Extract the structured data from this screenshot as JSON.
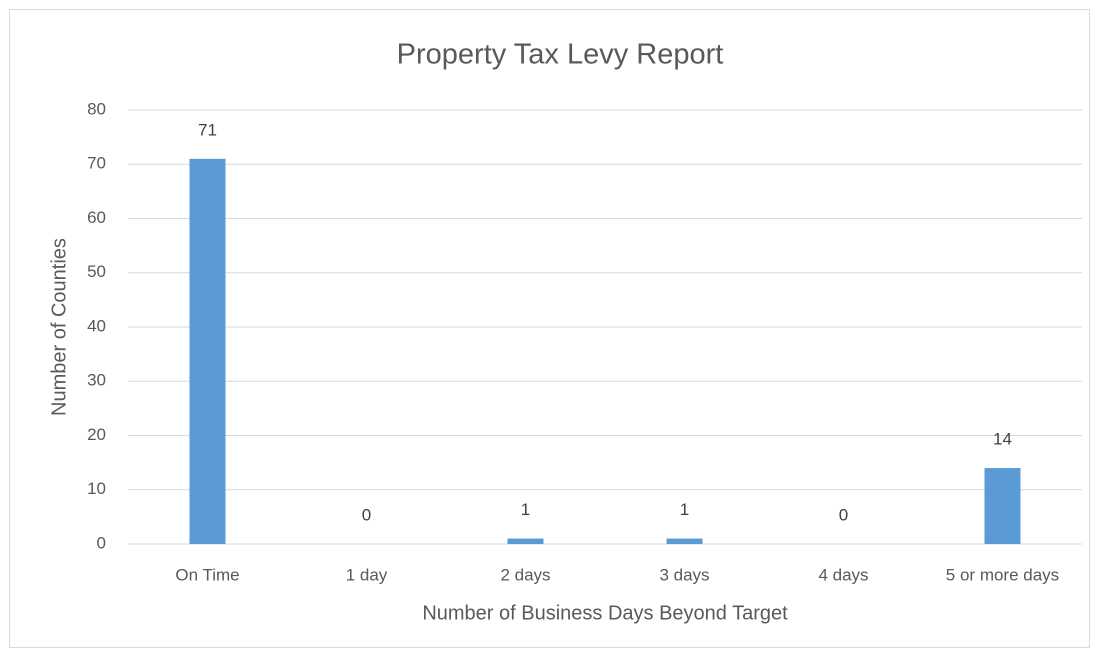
{
  "chart_data": {
    "type": "bar",
    "title": "Property Tax Levy Report",
    "x_label": "Number of Business Days Beyond Target",
    "y_label": "Number of Counties",
    "categories": [
      "On Time",
      "1 day",
      "2 days",
      "3 days",
      "4 days",
      "5 or more days"
    ],
    "values": [
      71,
      0,
      1,
      1,
      0,
      14
    ],
    "color": "#5b9bd5",
    "ylim": [
      0,
      80
    ],
    "yticks": [
      0,
      10,
      20,
      30,
      40,
      50,
      60,
      70,
      80
    ],
    "grid": true,
    "data_labels": true
  }
}
